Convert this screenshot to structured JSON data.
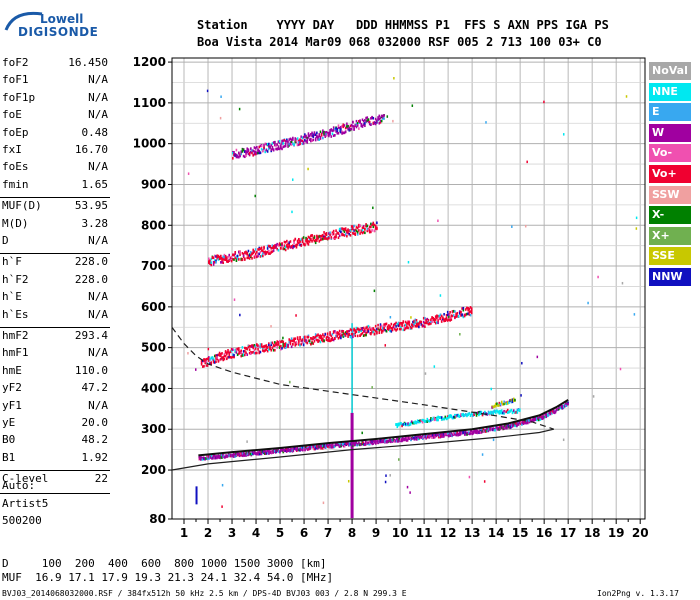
{
  "logo": {
    "line1": "Lowell",
    "line2": "DIGISONDE"
  },
  "header": {
    "row1": "Station    YYYY DAY   DDD HHMMSS P1  FFS S AXN PPS IGA PS",
    "row2": "Boa Vista 2014 Mar09 068 032000 RSF 005 2 713 100 03+ C0"
  },
  "params": [
    {
      "name": "foF2",
      "value": "16.450",
      "group": 0
    },
    {
      "name": "foF1",
      "value": "N/A",
      "group": 0
    },
    {
      "name": "foF1p",
      "value": "N/A",
      "group": 0
    },
    {
      "name": "foE",
      "value": "N/A",
      "group": 0
    },
    {
      "name": "foEp",
      "value": "0.48",
      "group": 0
    },
    {
      "name": "fxI",
      "value": "16.70",
      "group": 0
    },
    {
      "name": "foEs",
      "value": "N/A",
      "group": 0
    },
    {
      "name": "fmin",
      "value": "1.65",
      "group": 0
    },
    {
      "name": "MUF(D)",
      "value": "53.95",
      "group": 1
    },
    {
      "name": "M(D)",
      "value": "3.28",
      "group": 1
    },
    {
      "name": "D",
      "value": "N/A",
      "group": 1
    },
    {
      "name": "h`F",
      "value": "228.0",
      "group": 2
    },
    {
      "name": "h`F2",
      "value": "228.0",
      "group": 2
    },
    {
      "name": "h`E",
      "value": "N/A",
      "group": 2
    },
    {
      "name": "h`Es",
      "value": "N/A",
      "group": 2
    },
    {
      "name": "hmF2",
      "value": "293.4",
      "group": 3
    },
    {
      "name": "hmF1",
      "value": "N/A",
      "group": 3
    },
    {
      "name": "hmE",
      "value": "110.0",
      "group": 3
    },
    {
      "name": "yF2",
      "value": "47.2",
      "group": 3
    },
    {
      "name": "yF1",
      "value": "N/A",
      "group": 3
    },
    {
      "name": "yE",
      "value": "20.0",
      "group": 3
    },
    {
      "name": "B0",
      "value": "48.2",
      "group": 3
    },
    {
      "name": "B1",
      "value": "1.92",
      "group": 3
    },
    {
      "name": "C-level",
      "value": "22",
      "group": 4
    }
  ],
  "scaler": {
    "line1": "Auto:",
    "line2": "Artist5",
    "line3": "500200"
  },
  "footer": {
    "d_row": "D     100  200  400  600  800 1000 1500 3000 [km]",
    "muf_row": "MUF  16.9 17.1 17.9 19.3 21.3 24.1 32.4 54.0 [MHz]",
    "file_info": "BVJ03_2014068032000.RSF / 384fx512h 50 kHz 2.5 km / DPS-4D BVJ03 003 / 2.8 N 299.3 E",
    "version": "Ion2Png v. 1.3.17"
  },
  "legend": [
    {
      "label": "NoVal",
      "color": "#a8a8a8"
    },
    {
      "label": "NNE",
      "color": "#00e8f0"
    },
    {
      "label": "E",
      "color": "#38a8f0"
    },
    {
      "label": "W",
      "color": "#a000a0"
    },
    {
      "label": "Vo-",
      "color": "#f050b0"
    },
    {
      "label": "Vo+",
      "color": "#f00030"
    },
    {
      "label": "SSW",
      "color": "#f0a0a0"
    },
    {
      "label": "X-",
      "color": "#008000"
    },
    {
      "label": "X+",
      "color": "#70b050"
    },
    {
      "label": "SSE",
      "color": "#c8c800"
    },
    {
      "label": "NNW",
      "color": "#1010c0"
    }
  ],
  "chart_data": {
    "type": "scatter",
    "title": "",
    "xlabel": "",
    "ylabel": "",
    "xlim": [
      0.5,
      20.2
    ],
    "ylim": [
      80,
      1210
    ],
    "x_ticks": [
      1,
      2,
      3,
      4,
      5,
      6,
      7,
      8,
      9,
      10,
      11,
      12,
      13,
      14,
      15,
      16,
      17,
      18,
      19,
      20
    ],
    "y_ticks": [
      80,
      200,
      300,
      400,
      500,
      600,
      700,
      800,
      900,
      1000,
      1100,
      1200
    ],
    "grid": true,
    "traces": [
      {
        "name": "F2 1-hop O",
        "color": "#a000a0",
        "points": [
          [
            1.6,
            232
          ],
          [
            3,
            240
          ],
          [
            5,
            250
          ],
          [
            7,
            262
          ],
          [
            9,
            272
          ],
          [
            11,
            284
          ],
          [
            13,
            296
          ],
          [
            14.5,
            310
          ],
          [
            15.8,
            330
          ],
          [
            16.5,
            350
          ],
          [
            17,
            368
          ]
        ]
      },
      {
        "name": "F2 1-hop X",
        "color": "#00e8f0",
        "points": [
          [
            9.8,
            312
          ],
          [
            11,
            325
          ],
          [
            12.5,
            337
          ],
          [
            14,
            345
          ],
          [
            15,
            348
          ]
        ]
      },
      {
        "name": "F2 cusp",
        "color": "#c8c800",
        "points": [
          [
            13.8,
            360
          ],
          [
            14.3,
            368
          ],
          [
            14.8,
            375
          ]
        ]
      },
      {
        "name": "F2 2-hop",
        "color": "#f00030",
        "points": [
          [
            1.7,
            465
          ],
          [
            3,
            490
          ],
          [
            5,
            510
          ],
          [
            7,
            530
          ],
          [
            9,
            548
          ],
          [
            11,
            565
          ],
          [
            13,
            595
          ]
        ]
      },
      {
        "name": "F2 3-hop",
        "color": "#f00030",
        "points": [
          [
            2,
            715
          ],
          [
            4,
            735
          ],
          [
            6,
            765
          ],
          [
            8,
            790
          ],
          [
            9,
            800
          ]
        ]
      },
      {
        "name": "F2 4-hop",
        "color": "#a000a0",
        "points": [
          [
            3,
            975
          ],
          [
            5,
            1000
          ],
          [
            7,
            1030
          ],
          [
            8.5,
            1055
          ],
          [
            9.3,
            1065
          ]
        ]
      }
    ],
    "profile_dashed": [
      [
        0.5,
        550
      ],
      [
        1,
        510
      ],
      [
        1.5,
        480
      ],
      [
        2,
        460
      ],
      [
        3,
        440
      ],
      [
        5,
        410
      ],
      [
        8,
        385
      ],
      [
        11,
        360
      ],
      [
        14,
        333
      ],
      [
        15.5,
        318
      ],
      [
        16.4,
        300
      ]
    ],
    "profile_solid": [
      [
        0.5,
        200
      ],
      [
        2,
        215
      ],
      [
        5,
        232
      ],
      [
        8,
        250
      ],
      [
        11,
        264
      ],
      [
        14,
        280
      ],
      [
        15.8,
        292
      ],
      [
        16.4,
        300
      ]
    ]
  }
}
